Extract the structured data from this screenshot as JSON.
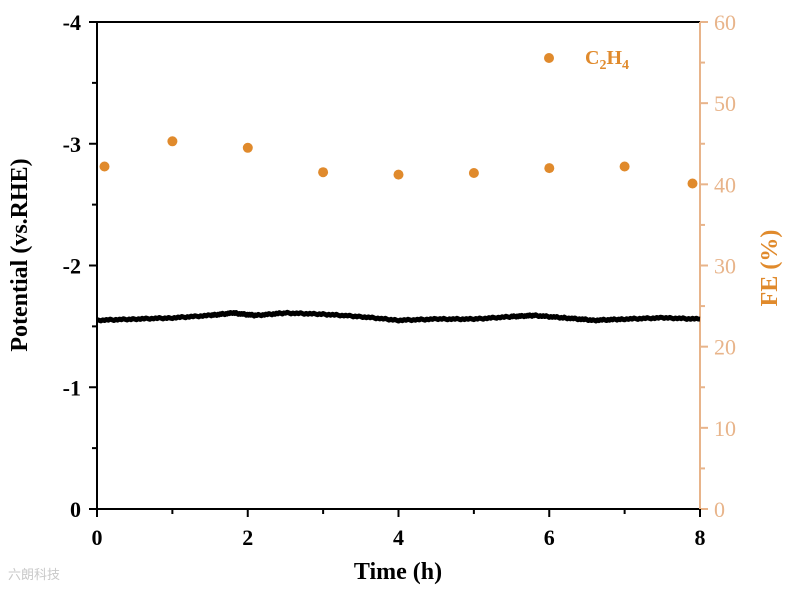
{
  "chart_data": {
    "type": "line+scatter",
    "xlabel": "Time (h)",
    "ylabel_left": "Potential (vs.RHE)",
    "ylabel_right": "FE (%)",
    "xlim": [
      0,
      8
    ],
    "ylim_left": [
      0,
      -4
    ],
    "ylim_right": [
      0,
      60
    ],
    "x_ticks": [
      "0",
      "2",
      "4",
      "6",
      "8"
    ],
    "y_left_ticks": [
      "0",
      "-1",
      "-2",
      "-3",
      "-4"
    ],
    "y_right_ticks": [
      "0",
      "10",
      "20",
      "30",
      "40",
      "50",
      "60"
    ],
    "colors": {
      "potential": "#000000",
      "fe": "#e08a2c",
      "right_axis": "#e8b48a"
    },
    "series": [
      {
        "name": "Potential",
        "axis": "left",
        "x": [
          0,
          0.5,
          1.0,
          1.5,
          1.8,
          2.1,
          2.5,
          3.0,
          3.5,
          4.0,
          4.5,
          5.0,
          5.5,
          5.8,
          6.2,
          6.6,
          7.0,
          7.5,
          8.0
        ],
        "y": [
          -1.55,
          -1.56,
          -1.57,
          -1.59,
          -1.61,
          -1.59,
          -1.61,
          -1.6,
          -1.58,
          -1.55,
          -1.56,
          -1.56,
          -1.58,
          -1.59,
          -1.57,
          -1.55,
          -1.56,
          -1.57,
          -1.56
        ]
      },
      {
        "name": "C2H4",
        "axis": "right",
        "x": [
          0.1,
          1,
          2,
          3,
          4,
          5,
          6,
          7,
          7.9
        ],
        "y": [
          42.2,
          45.3,
          44.5,
          41.5,
          41.2,
          41.4,
          42.0,
          42.2,
          40.1
        ]
      }
    ],
    "legend": {
      "position": "top-right",
      "label": "C2H4",
      "label_main": "C",
      "sub1": "2",
      "label_mid": "H",
      "sub2": "4"
    }
  },
  "watermark": "六朗科技"
}
